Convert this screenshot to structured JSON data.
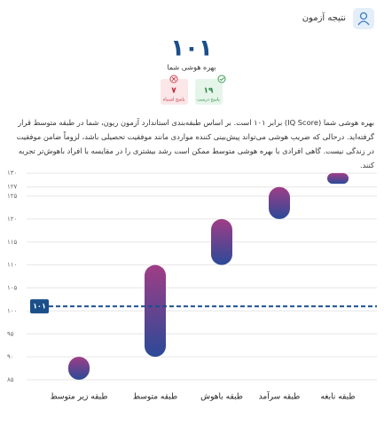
{
  "header": {
    "title": "نتیجه آزمون"
  },
  "score": {
    "value": 101,
    "label": "۱۰۱"
  },
  "score_caption": "بهره هوشی شما",
  "correct": {
    "value": 19,
    "label": "۱۹",
    "caption": "پاسخ درست"
  },
  "wrong": {
    "value": 7,
    "label": "۷",
    "caption": "پاسخ اشتباه"
  },
  "description": "بهره هوشی شما (IQ Score) برابر ۱۰۱ است. بر اساس طبقه‌بندی استاندارد آزمون ریون، شما در طبقه متوسط قرار گرفته‌اید. درحالی که ضریب هوشی می‌تواند پیش‌بینی کننده مواردی مانند موفقیت تحصیلی باشد، لزوماً ضامن موفقیت در زندگی نیست. گاهی افرادی با بهره هوشی متوسط ممکن است رشد بیشتری را در مقایسه با افراد باهوش‌تر تجربه کنند.",
  "chart_data": {
    "type": "range-bar",
    "categories": [
      "طبقه زیر متوسط",
      "طبقه متوسط",
      "طبقه باهوش",
      "طبقه سرآمد",
      "طبقه نابغه"
    ],
    "ranges": [
      [
        85,
        90
      ],
      [
        90,
        110
      ],
      [
        110,
        120
      ],
      [
        120,
        127
      ],
      [
        128,
        130
      ]
    ],
    "ylim": [
      85,
      131
    ],
    "yticks": [
      {
        "value": 85,
        "label": "۸۵"
      },
      {
        "value": 90,
        "label": "۹۰"
      },
      {
        "value": 95,
        "label": "۹۵"
      },
      {
        "value": 100,
        "label": "۱۰۰"
      },
      {
        "value": 105,
        "label": "۱۰۵"
      },
      {
        "value": 110,
        "label": "۱۱۰"
      },
      {
        "value": 115,
        "label": "۱۱۵"
      },
      {
        "value": 120,
        "label": "۱۲۰"
      },
      {
        "value": 125,
        "label": "۱۲۵"
      },
      {
        "value": 127,
        "label": "۱۲۷"
      },
      {
        "value": 130,
        "label": "۱۳۰"
      }
    ],
    "grid": true,
    "reference_line": {
      "value": 101,
      "label": "۱۰۱"
    }
  }
}
